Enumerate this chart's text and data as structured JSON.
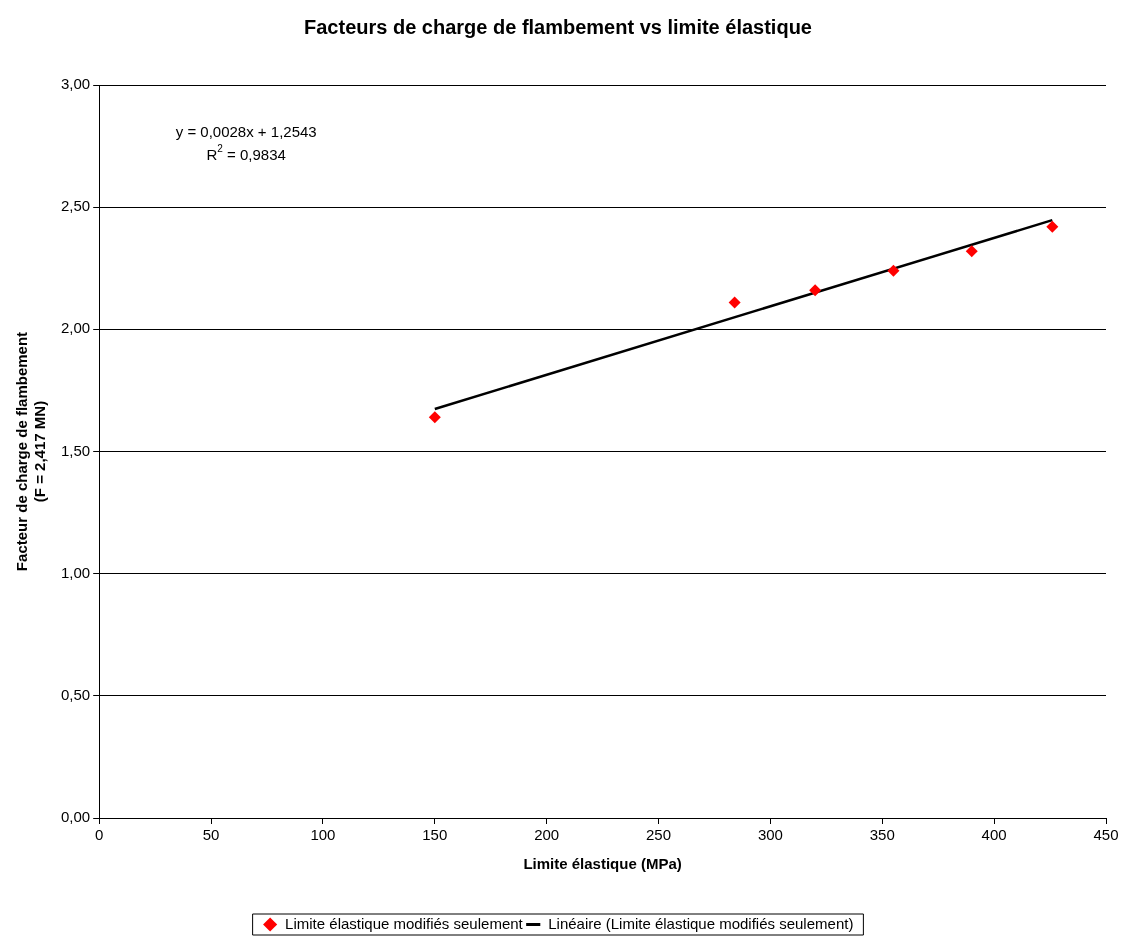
{
  "chart_data": {
    "type": "scatter",
    "title": "Facteurs de charge de flambement vs limite élastique",
    "xlabel": "Limite élastique (MPa)",
    "ylabel": "Facteur de charge de flambement\n(F = 2,417 MN)",
    "x": [
      150,
      284,
      320,
      355,
      390,
      426
    ],
    "series": [
      {
        "name": "Limite élastique modifiés seulement",
        "color": "#ff0000",
        "marker": "diamond",
        "values": [
          1.64,
          2.11,
          2.16,
          2.24,
          2.32,
          2.42
        ]
      },
      {
        "name": "Linéaire (Limite élastique modifiés seulement)",
        "color": "#000000",
        "type": "line",
        "marker": "none",
        "x": [
          150,
          426
        ],
        "values": [
          1.674,
          2.447
        ]
      }
    ],
    "xlim": [
      0,
      450
    ],
    "xticks": [
      0,
      50,
      100,
      150,
      200,
      250,
      300,
      350,
      400,
      450
    ],
    "ylim": [
      0,
      3
    ],
    "yticks": [
      {
        "value": 0,
        "label": "0,00"
      },
      {
        "value": 0.5,
        "label": "0,50"
      },
      {
        "value": 1,
        "label": "1,00"
      },
      {
        "value": 1.5,
        "label": "1,50"
      },
      {
        "value": 2,
        "label": "2,00"
      },
      {
        "value": 2.5,
        "label": "2,50"
      },
      {
        "value": 3,
        "label": "3,00"
      }
    ],
    "grid": "y",
    "legend": "bottom",
    "annotations": [
      "y = 0,0028x + 1,2543",
      "R$^{2}$ = 0,9834"
    ]
  }
}
